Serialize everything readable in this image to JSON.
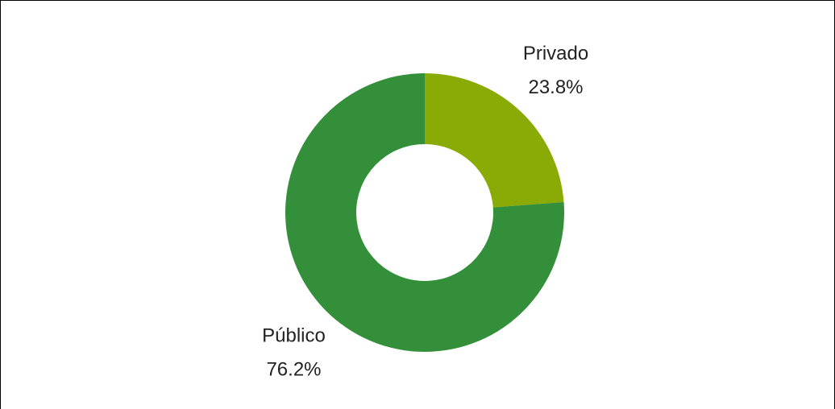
{
  "chart_data": {
    "type": "donut",
    "categories": [
      "Privado",
      "Público"
    ],
    "values": [
      23.8,
      76.2
    ],
    "value_labels": [
      "23.8%",
      "76.2%"
    ],
    "colors": [
      "#8aaa05",
      "#348f3a"
    ]
  }
}
